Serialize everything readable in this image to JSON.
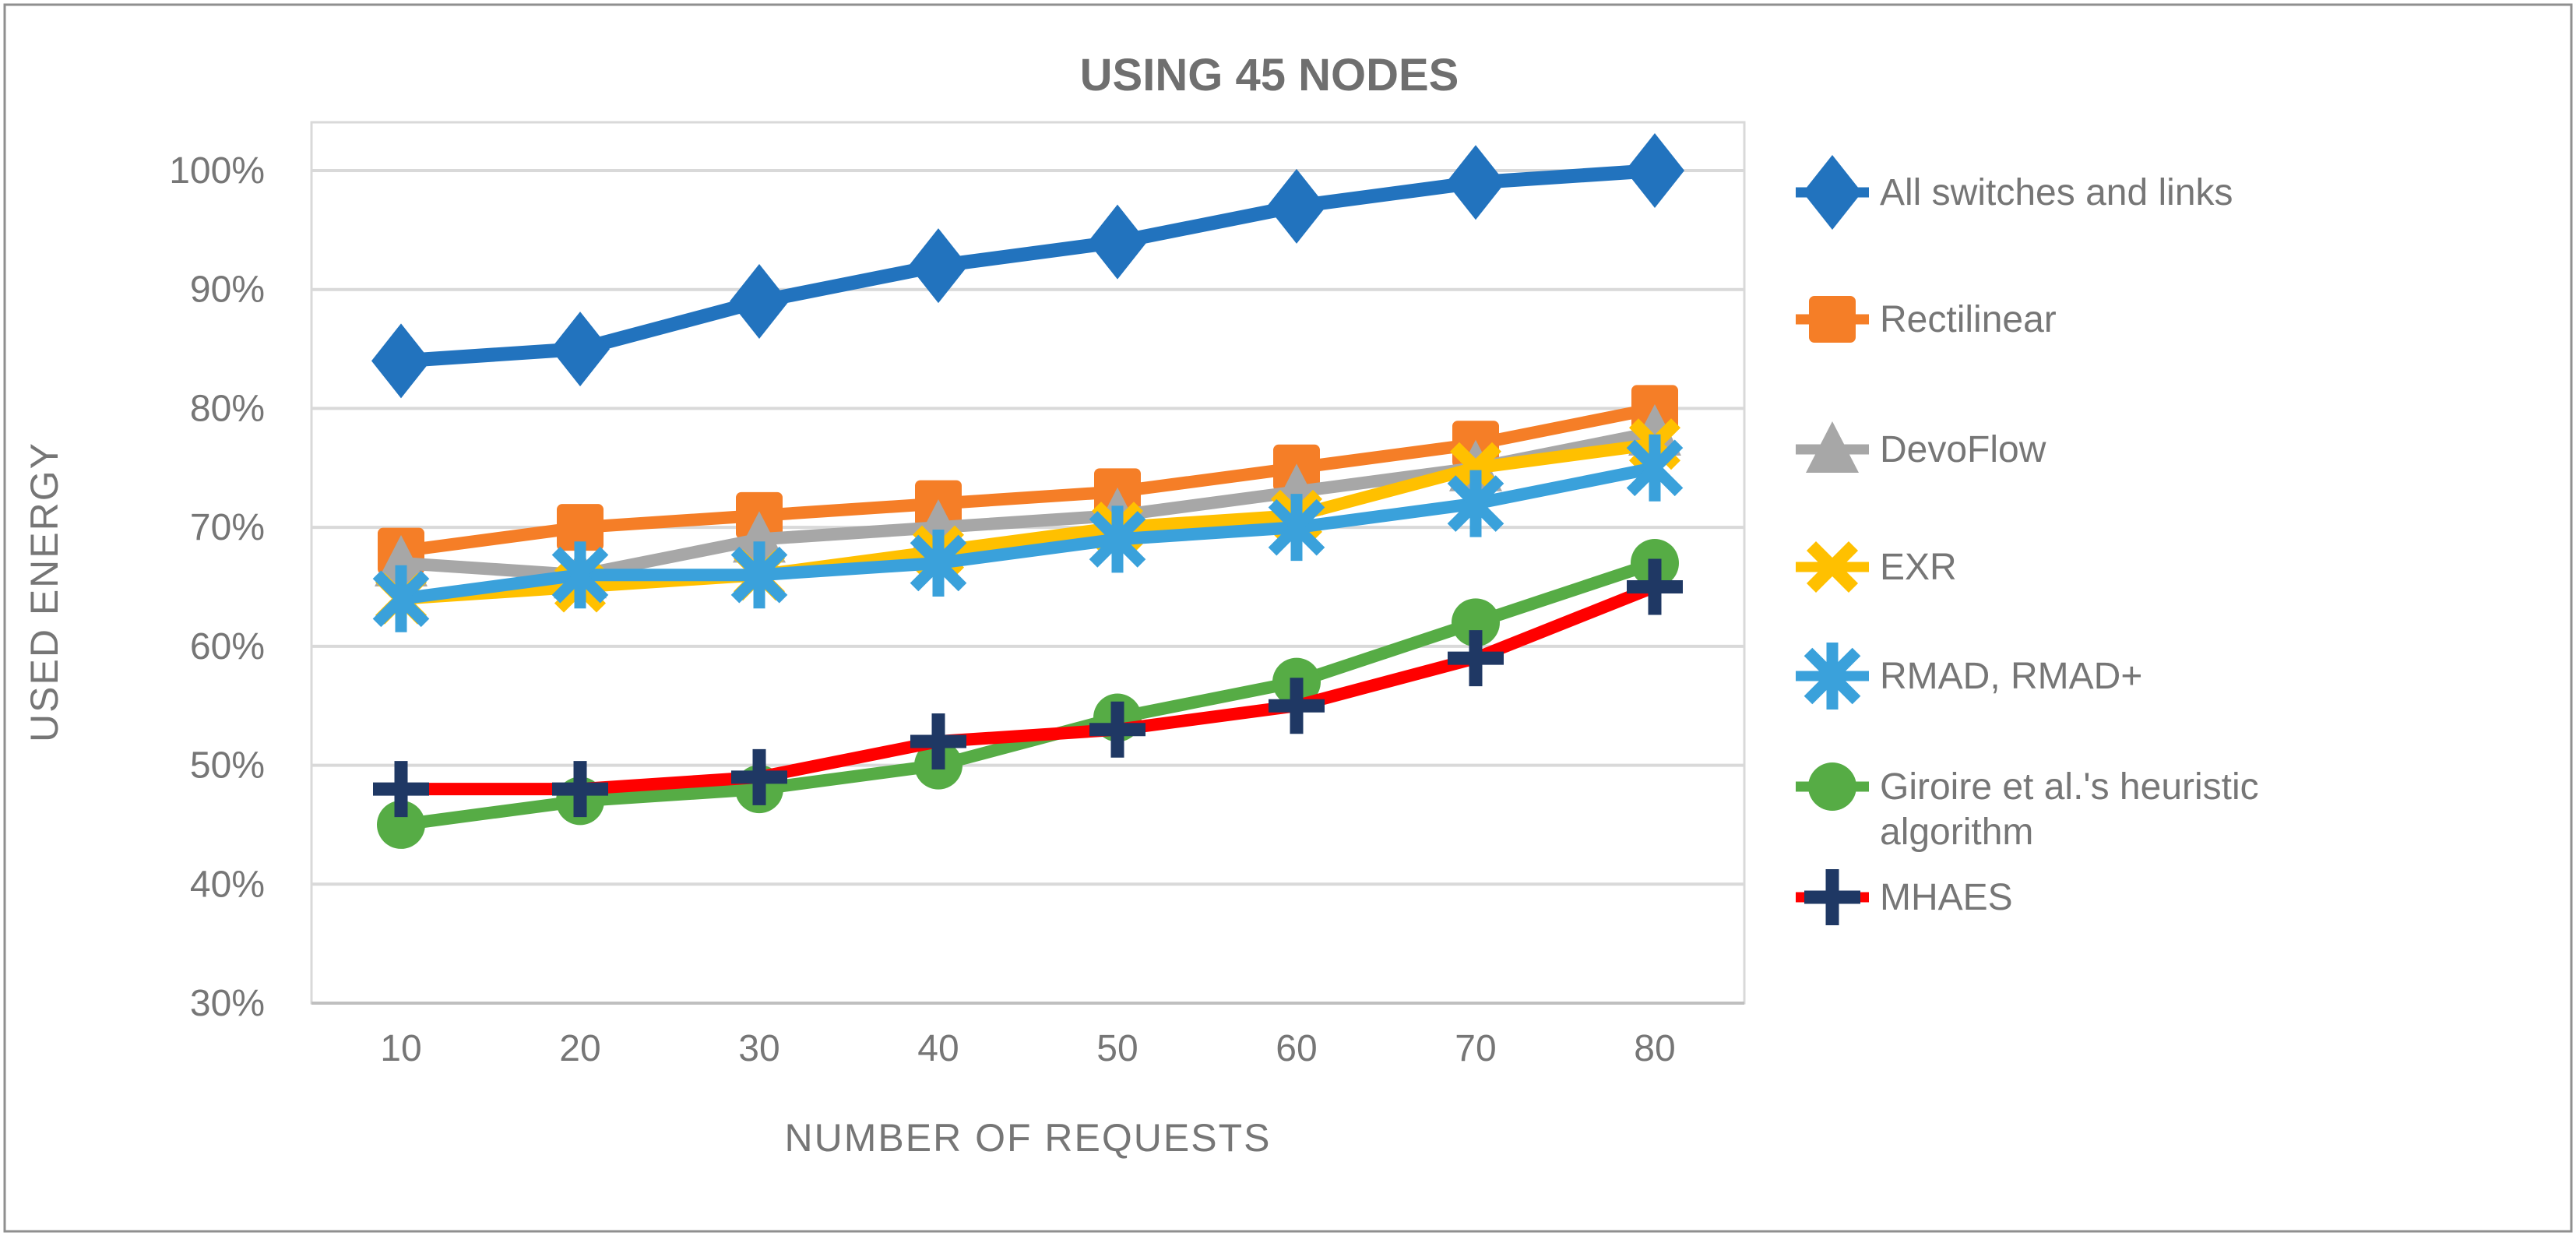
{
  "figure": {
    "title": "USING 45 NODES",
    "x_axis_title": "NUMBER OF REQUESTS",
    "y_axis_title": "USED ENERGY"
  },
  "chart_data": {
    "type": "line",
    "title": "USING 45 NODES",
    "xlabel": "NUMBER OF REQUESTS",
    "ylabel": "USED ENERGY",
    "categories": [
      "10",
      "20",
      "30",
      "40",
      "50",
      "60",
      "70",
      "80"
    ],
    "y_ticks": [
      "30%",
      "40%",
      "50%",
      "60%",
      "70%",
      "80%",
      "90%",
      "100%"
    ],
    "ylim": [
      30,
      100
    ],
    "grid": "horizontal",
    "legend_position": "right",
    "colors": {
      "gridline": "#D9D9D9",
      "axis_line": "#BFBFBF",
      "text": "#767676",
      "figure_border": "#8F8F8F"
    },
    "series": [
      {
        "name": "All switches and links",
        "color": "#2273BE",
        "marker": "diamond",
        "values": [
          84,
          85,
          89,
          92,
          94,
          97,
          99,
          100
        ]
      },
      {
        "name": "Rectilinear",
        "color": "#F57E27",
        "marker": "square",
        "values": [
          68,
          70,
          71,
          72,
          73,
          75,
          77,
          80
        ]
      },
      {
        "name": "DevoFlow",
        "color": "#A7A7A7",
        "marker": "triangle",
        "values": [
          67,
          66,
          69,
          70,
          71,
          73,
          75,
          78
        ]
      },
      {
        "name": "EXR",
        "color": "#FFC000",
        "marker": "x",
        "values": [
          64,
          65,
          66,
          68,
          70,
          71,
          75,
          77
        ]
      },
      {
        "name": "RMAD, RMAD+",
        "color": "#3AA1DB",
        "marker": "asterisk",
        "values": [
          64,
          66,
          66,
          67,
          69,
          70,
          72,
          75
        ]
      },
      {
        "name": "Giroire et al.'s heuristic algorithm",
        "color": "#56AC45",
        "marker": "circle",
        "values": [
          45,
          47,
          48,
          50,
          54,
          57,
          62,
          67
        ]
      },
      {
        "name": "MHAES",
        "color": "#FF0000",
        "marker": "plus",
        "marker_color": "#1F3864",
        "values": [
          48,
          48,
          49,
          52,
          53,
          55,
          59,
          65
        ]
      }
    ]
  }
}
